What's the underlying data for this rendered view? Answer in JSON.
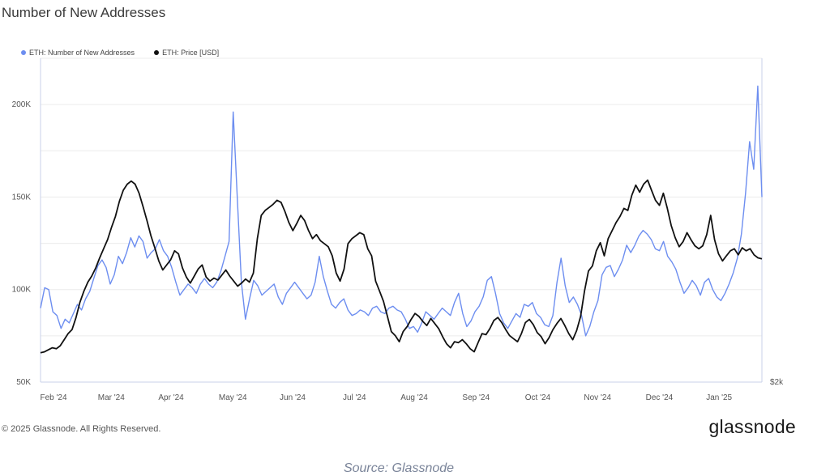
{
  "title": "Number of New Addresses",
  "legend": {
    "series1": "ETH: Number of New Addresses",
    "series2": "ETH: Price [USD]"
  },
  "copyright": "© 2025 Glassnode. All Rights Reserved.",
  "logo": "glassnode",
  "source": "Source: Glassnode",
  "colors": {
    "addresses": "#6d8ef0",
    "price": "#111111",
    "grid": "#ececec",
    "axis": "#c9d2ea"
  },
  "chart_data": {
    "type": "line",
    "title": "Number of New Addresses",
    "x_labels": [
      "Feb '24",
      "Mar '24",
      "Apr '24",
      "May '24",
      "Jun '24",
      "Jul '24",
      "Aug '24",
      "Sep '24",
      "Oct '24",
      "Nov '24",
      "Dec '24",
      "Jan '25"
    ],
    "y_left": {
      "ticks": [
        "50K",
        "100K",
        "150K",
        "200K"
      ],
      "range": [
        50000,
        225000
      ]
    },
    "y_right": {
      "ticks": [
        "$2k"
      ]
    },
    "grid": true,
    "legend_position": "top-left",
    "series": [
      {
        "name": "ETH: Number of New Addresses",
        "axis": "left",
        "x_range": [
          "2024-01-31",
          "2025-01-27"
        ],
        "values": [
          90000,
          101000,
          100000,
          88000,
          86000,
          79000,
          84000,
          82000,
          87000,
          92000,
          89000,
          95000,
          99000,
          106000,
          113000,
          116000,
          112000,
          103000,
          108000,
          118000,
          114000,
          120000,
          128000,
          123000,
          129000,
          126000,
          117000,
          120000,
          122000,
          127000,
          121000,
          118000,
          112000,
          104000,
          97000,
          100000,
          103000,
          101000,
          98000,
          103000,
          106000,
          103000,
          101000,
          104000,
          110000,
          118000,
          126000,
          196000,
          150000,
          104000,
          84000,
          95000,
          105000,
          102000,
          97000,
          99000,
          101000,
          103000,
          96000,
          92000,
          98000,
          101000,
          104000,
          101000,
          98000,
          95000,
          97000,
          104000,
          118000,
          107000,
          99000,
          92000,
          90000,
          93000,
          95000,
          89000,
          86000,
          87000,
          89000,
          88000,
          86000,
          90000,
          91000,
          88000,
          87000,
          90000,
          91000,
          89000,
          88000,
          84000,
          79000,
          80000,
          77000,
          82000,
          88000,
          86000,
          84000,
          87000,
          90000,
          88000,
          86000,
          93000,
          98000,
          87000,
          80000,
          83000,
          88000,
          91000,
          96000,
          105000,
          107000,
          98000,
          87000,
          82000,
          79000,
          83000,
          87000,
          85000,
          92000,
          91000,
          93000,
          87000,
          85000,
          81000,
          80000,
          86000,
          104000,
          117000,
          102000,
          93000,
          96000,
          92000,
          86000,
          75000,
          80000,
          88000,
          94000,
          108000,
          112000,
          113000,
          107000,
          111000,
          116000,
          124000,
          120000,
          124000,
          129000,
          132000,
          130000,
          127000,
          122000,
          121000,
          126000,
          118000,
          115000,
          111000,
          104000,
          98000,
          101000,
          105000,
          102000,
          97000,
          104000,
          106000,
          100000,
          96000,
          94000,
          98000,
          103000,
          109000,
          117000,
          130000,
          152000,
          180000,
          165000,
          210000,
          150000
        ]
      },
      {
        "name": "ETH: Price [USD]",
        "axis": "right",
        "x_range": [
          "2024-01-31",
          "2025-01-27"
        ],
        "values": [
          2290,
          2300,
          2320,
          2340,
          2330,
          2360,
          2420,
          2480,
          2520,
          2640,
          2790,
          2900,
          2990,
          3050,
          3130,
          3230,
          3320,
          3410,
          3530,
          3640,
          3790,
          3900,
          3960,
          3990,
          3960,
          3870,
          3740,
          3600,
          3450,
          3330,
          3200,
          3110,
          3160,
          3210,
          3300,
          3270,
          3130,
          3040,
          2980,
          3050,
          3120,
          3160,
          3040,
          3000,
          3030,
          3010,
          3060,
          3110,
          3050,
          3000,
          2950,
          2980,
          3020,
          2990,
          3080,
          3420,
          3650,
          3700,
          3730,
          3760,
          3800,
          3780,
          3690,
          3580,
          3500,
          3570,
          3650,
          3600,
          3500,
          3420,
          3460,
          3400,
          3370,
          3340,
          3250,
          3080,
          3000,
          3120,
          3370,
          3420,
          3450,
          3480,
          3460,
          3320,
          3250,
          3000,
          2900,
          2800,
          2650,
          2500,
          2460,
          2400,
          2500,
          2550,
          2620,
          2680,
          2650,
          2600,
          2560,
          2630,
          2580,
          2530,
          2450,
          2380,
          2340,
          2400,
          2390,
          2420,
          2380,
          2330,
          2300,
          2390,
          2480,
          2470,
          2530,
          2610,
          2640,
          2590,
          2520,
          2460,
          2430,
          2400,
          2480,
          2590,
          2620,
          2570,
          2490,
          2450,
          2380,
          2440,
          2520,
          2580,
          2630,
          2560,
          2480,
          2420,
          2510,
          2650,
          2900,
          3100,
          3150,
          3300,
          3380,
          3250,
          3420,
          3500,
          3580,
          3640,
          3720,
          3700,
          3850,
          3950,
          3880,
          3960,
          4000,
          3900,
          3800,
          3750,
          3870,
          3720,
          3550,
          3430,
          3340,
          3390,
          3480,
          3410,
          3350,
          3320,
          3350,
          3460,
          3650,
          3410,
          3270,
          3200,
          3250,
          3300,
          3320,
          3260,
          3330,
          3300,
          3320,
          3260,
          3230,
          3220
        ]
      }
    ]
  }
}
